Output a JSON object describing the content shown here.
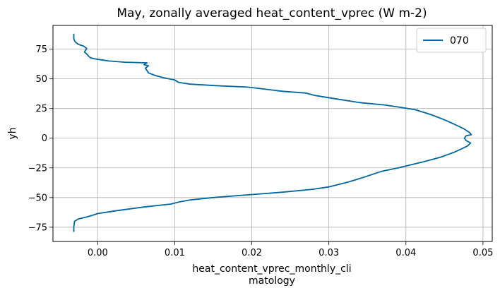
{
  "chart_data": {
    "type": "line",
    "title": "May, zonally averaged heat_content_vprec (W m-2)",
    "xlabel_lines": [
      "heat_content_vprec_monthly_cli",
      "matology"
    ],
    "ylabel": "yh",
    "xlim": [
      -0.0058,
      0.0512
    ],
    "ylim": [
      -87,
      95
    ],
    "xticks": [
      0.0,
      0.01,
      0.02,
      0.03,
      0.04,
      0.05
    ],
    "xtick_labels": [
      "0.00",
      "0.01",
      "0.02",
      "0.03",
      "0.04",
      "0.05"
    ],
    "yticks": [
      -75,
      -50,
      -25,
      0,
      25,
      50,
      75
    ],
    "ytick_labels": [
      "−75",
      "−50",
      "−25",
      "0",
      "25",
      "50",
      "75"
    ],
    "grid": true,
    "legend_position": "top-right",
    "series": [
      {
        "name": "070",
        "color": "#0066a0",
        "points": [
          [
            -0.0031,
            -79
          ],
          [
            -0.0031,
            -75
          ],
          [
            -0.003,
            -70
          ],
          [
            -0.0025,
            -68
          ],
          [
            -0.0015,
            -66.5
          ],
          [
            -0.0007,
            -65
          ],
          [
            0.0,
            -63.5
          ],
          [
            0.0025,
            -61
          ],
          [
            0.006,
            -58
          ],
          [
            0.0095,
            -55.5
          ],
          [
            0.0107,
            -53.5
          ],
          [
            0.012,
            -52
          ],
          [
            0.015,
            -50
          ],
          [
            0.019,
            -48
          ],
          [
            0.024,
            -45.5
          ],
          [
            0.028,
            -43
          ],
          [
            0.03,
            -41
          ],
          [
            0.0325,
            -37
          ],
          [
            0.0345,
            -33
          ],
          [
            0.0368,
            -28
          ],
          [
            0.039,
            -25
          ],
          [
            0.0422,
            -20
          ],
          [
            0.0445,
            -16
          ],
          [
            0.0462,
            -12
          ],
          [
            0.0472,
            -9
          ],
          [
            0.048,
            -6.5
          ],
          [
            0.0484,
            -4
          ],
          [
            0.0478,
            -2
          ],
          [
            0.0476,
            0
          ],
          [
            0.0478,
            2
          ],
          [
            0.0485,
            3
          ],
          [
            0.0482,
            5
          ],
          [
            0.0475,
            8
          ],
          [
            0.0462,
            12
          ],
          [
            0.0448,
            16
          ],
          [
            0.0432,
            20
          ],
          [
            0.0412,
            24
          ],
          [
            0.0398,
            25.5
          ],
          [
            0.0372,
            28
          ],
          [
            0.034,
            30
          ],
          [
            0.031,
            33
          ],
          [
            0.0282,
            36
          ],
          [
            0.027,
            38
          ],
          [
            0.024,
            39.5
          ],
          [
            0.0215,
            41.5
          ],
          [
            0.0195,
            43
          ],
          [
            0.016,
            44
          ],
          [
            0.012,
            45.5
          ],
          [
            0.0105,
            47
          ],
          [
            0.01,
            49
          ],
          [
            0.0085,
            51
          ],
          [
            0.0074,
            53
          ],
          [
            0.0066,
            55
          ],
          [
            0.0064,
            57
          ],
          [
            0.0062,
            59
          ],
          [
            0.0066,
            61
          ],
          [
            0.006,
            62
          ],
          [
            0.0064,
            63.5
          ],
          [
            0.0035,
            64
          ],
          [
            0.0015,
            65
          ],
          [
            0.0005,
            66
          ],
          [
            -0.0005,
            67
          ],
          [
            -0.001,
            68
          ],
          [
            -0.0013,
            70
          ],
          [
            -0.0015,
            71.5
          ],
          [
            -0.0017,
            72.5
          ],
          [
            -0.0016,
            74
          ],
          [
            -0.0014,
            75.5
          ],
          [
            -0.0018,
            77.5
          ],
          [
            -0.0025,
            79
          ],
          [
            -0.0028,
            80.5
          ],
          [
            -0.003,
            82
          ],
          [
            -0.0031,
            84
          ],
          [
            -0.0031,
            86
          ],
          [
            -0.0031,
            88
          ]
        ]
      }
    ]
  }
}
